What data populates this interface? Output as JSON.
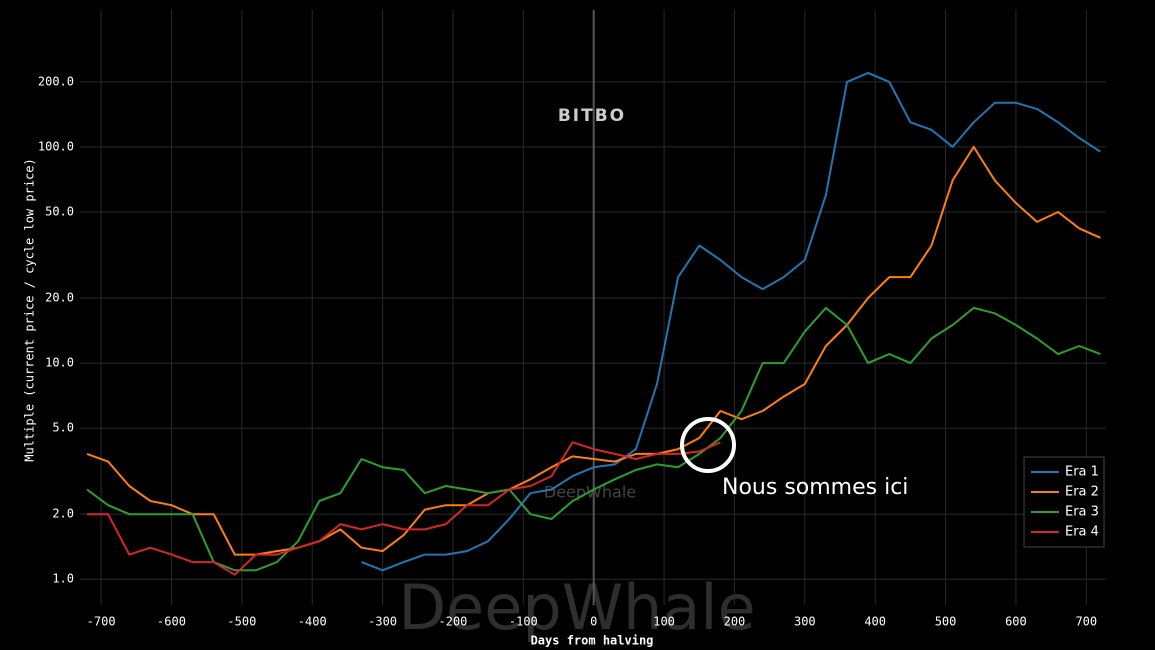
{
  "chart_data": {
    "type": "line",
    "xlabel": "Days from halving",
    "ylabel": "Multiple (current price / cycle low price)",
    "annotation": "Nous sommes ici",
    "logo": "BITBO",
    "watermark": "DeepWhale",
    "log_y": true,
    "grid": true,
    "legend": "lower right",
    "xlim": [
      -730,
      728
    ],
    "ylim": [
      0.76,
      430
    ],
    "xticks": [
      -700,
      -600,
      -500,
      -400,
      -300,
      -200,
      -100,
      0,
      100,
      200,
      300,
      400,
      500,
      600,
      700
    ],
    "yticks": [
      {
        "value": 1,
        "label": "1.0"
      },
      {
        "value": 2,
        "label": "2.0"
      },
      {
        "value": 5,
        "label": "5.0"
      },
      {
        "value": 10,
        "label": "10.0"
      },
      {
        "value": 20,
        "label": "20.0"
      },
      {
        "value": 50,
        "label": "50.0"
      },
      {
        "value": 100,
        "label": "100.0"
      },
      {
        "value": 200,
        "label": "200.0"
      }
    ],
    "x": [
      -720,
      -690,
      -660,
      -630,
      -600,
      -570,
      -540,
      -510,
      -480,
      -450,
      -420,
      -390,
      -360,
      -330,
      -300,
      -270,
      -240,
      -210,
      -180,
      -150,
      -120,
      -90,
      -60,
      -30,
      0,
      30,
      60,
      90,
      120,
      150,
      180,
      210,
      240,
      270,
      300,
      330,
      360,
      390,
      420,
      450,
      480,
      510,
      540,
      570,
      600,
      630,
      660,
      690,
      720
    ],
    "series": [
      {
        "name": "Era 1",
        "color": "#1f77b4",
        "values": [
          null,
          null,
          null,
          null,
          null,
          null,
          null,
          null,
          null,
          null,
          null,
          null,
          null,
          1.2,
          1.1,
          1.2,
          1.3,
          1.3,
          1.35,
          1.5,
          1.9,
          2.5,
          2.6,
          3.0,
          3.3,
          3.4,
          4.0,
          8,
          25,
          35,
          30,
          25,
          22,
          25,
          30,
          60,
          200,
          220,
          200,
          130,
          120,
          100,
          130,
          160,
          160,
          150,
          130,
          110,
          95
        ]
      },
      {
        "name": "Era 2",
        "color": "#ff7f0e",
        "values": [
          3.8,
          3.5,
          2.7,
          2.3,
          2.2,
          2.0,
          2.0,
          1.3,
          1.3,
          1.35,
          1.4,
          1.5,
          1.7,
          1.4,
          1.35,
          1.6,
          2.1,
          2.2,
          2.2,
          2.5,
          2.6,
          2.9,
          3.3,
          3.7,
          3.6,
          3.5,
          3.8,
          3.8,
          4.0,
          4.5,
          6,
          5.5,
          6,
          7,
          8,
          12,
          15,
          20,
          25,
          25,
          35,
          70,
          100,
          70,
          55,
          45,
          50,
          42,
          38
        ]
      },
      {
        "name": "Era 3",
        "color": "#2ca02c",
        "values": [
          2.6,
          2.2,
          2.0,
          2.0,
          2.0,
          2.0,
          1.2,
          1.1,
          1.1,
          1.2,
          1.5,
          2.3,
          2.5,
          3.6,
          3.3,
          3.2,
          2.5,
          2.7,
          2.6,
          2.5,
          2.6,
          2.0,
          1.9,
          2.3,
          2.6,
          2.9,
          3.2,
          3.4,
          3.3,
          3.8,
          4.5,
          6,
          10,
          10,
          14,
          18,
          15,
          10,
          11,
          10,
          13,
          15,
          18,
          17,
          15,
          13,
          11,
          12,
          11
        ]
      },
      {
        "name": "Era 4",
        "color": "#d62728",
        "values": [
          2.0,
          2.0,
          1.3,
          1.4,
          1.3,
          1.2,
          1.2,
          1.05,
          1.3,
          1.3,
          1.4,
          1.5,
          1.8,
          1.7,
          1.8,
          1.7,
          1.7,
          1.8,
          2.2,
          2.2,
          2.6,
          2.7,
          3.0,
          4.3,
          4.0,
          3.8,
          3.6,
          3.8,
          3.8,
          3.9,
          4.3,
          null,
          null,
          null,
          null,
          null,
          null,
          null,
          null,
          null,
          null,
          null,
          null,
          null,
          null,
          null,
          null,
          null,
          null
        ]
      }
    ]
  }
}
